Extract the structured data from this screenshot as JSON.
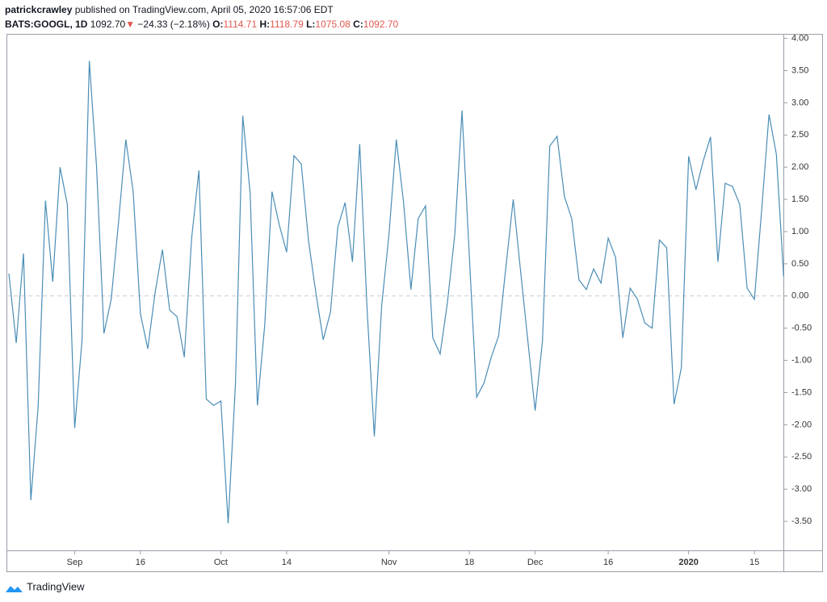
{
  "header": {
    "author": "patrickcrawley",
    "published": "published on TradingView.com, April 05, 2020 16:57:06 EDT",
    "symbol": "BATS:GOOGL, 1D",
    "last": "1092.70",
    "change": "−24.33 (−2.18%)",
    "ohlc": [
      {
        "key": "O:",
        "value": "1114.71"
      },
      {
        "key": "H:",
        "value": "1118.79"
      },
      {
        "key": "L:",
        "value": "1075.08"
      },
      {
        "key": "C:",
        "value": "1092.70"
      }
    ]
  },
  "chart_data": {
    "type": "line",
    "series": [
      {
        "color": "#4a8db5",
        "values": [
          0.35,
          -0.73,
          0.66,
          -3.17,
          -1.72,
          1.48,
          0.22,
          2.0,
          1.42,
          -2.05,
          -0.7,
          3.65,
          2.0,
          -0.58,
          -0.05,
          1.15,
          2.43,
          1.62,
          -0.28,
          -0.82,
          0.05,
          0.72,
          -0.22,
          -0.32,
          -0.95,
          0.9,
          1.95,
          -1.6,
          -1.7,
          -1.63,
          -3.53,
          -1.35,
          2.8,
          1.6,
          -1.7,
          -0.45,
          1.62,
          1.1,
          0.68,
          2.18,
          2.05,
          0.85,
          0.05,
          -0.68,
          -0.25,
          1.07,
          1.45,
          0.53,
          2.36,
          -0.2,
          -2.18,
          -0.15,
          0.95,
          2.43,
          1.45,
          0.1,
          1.2,
          1.4,
          -0.65,
          -0.9,
          -0.1,
          0.95,
          2.88,
          0.6,
          -1.57,
          -1.35,
          -0.95,
          -0.62,
          0.45,
          1.5,
          0.4,
          -0.7,
          -1.78,
          -0.7,
          2.33,
          2.48,
          1.55,
          1.2,
          0.25,
          0.1,
          0.42,
          0.2,
          0.9,
          0.6,
          -0.65,
          0.12,
          -0.05,
          -0.42,
          -0.5,
          0.87,
          0.75,
          -1.68,
          -1.12,
          2.17,
          1.65,
          2.1,
          2.47,
          0.53,
          1.75,
          1.7,
          1.42,
          0.12,
          -0.05,
          1.35,
          2.82,
          2.2,
          0.3
        ]
      }
    ],
    "xticks": [
      {
        "value": 9,
        "label": "Sep"
      },
      {
        "value": 18,
        "label": "16"
      },
      {
        "value": 29,
        "label": "Oct"
      },
      {
        "value": 38,
        "label": "14"
      },
      {
        "value": 52,
        "label": "Nov"
      },
      {
        "value": 63,
        "label": "18"
      },
      {
        "value": 72,
        "label": "Dec"
      },
      {
        "value": 82,
        "label": "16"
      },
      {
        "value": 93,
        "label": "2020"
      },
      {
        "value": 102,
        "label": "15"
      }
    ],
    "ylim": [
      -3.95,
      4.07
    ],
    "yticks": [
      {
        "value": 4,
        "label": "4.00"
      },
      {
        "value": 3.5,
        "label": "3.50"
      },
      {
        "value": 3,
        "label": "3.00"
      },
      {
        "value": 2.5,
        "label": "2.50"
      },
      {
        "value": 2,
        "label": "2.00"
      },
      {
        "value": 1.5,
        "label": "1.50"
      },
      {
        "value": 1,
        "label": "1.00"
      },
      {
        "value": 0.5,
        "label": "0.50"
      },
      {
        "value": 0,
        "label": "0.00"
      },
      {
        "value": -0.5,
        "label": "-0.50"
      },
      {
        "value": -1,
        "label": "-1.00"
      },
      {
        "value": -1.5,
        "label": "-1.50"
      },
      {
        "value": -2,
        "label": "-2.00"
      },
      {
        "value": -2.5,
        "label": "-2.50"
      },
      {
        "value": -3,
        "label": "-3.00"
      },
      {
        "value": -3.5,
        "label": "-3.50"
      }
    ],
    "baseline": 0
  },
  "footer": {
    "brand": "TradingView"
  }
}
